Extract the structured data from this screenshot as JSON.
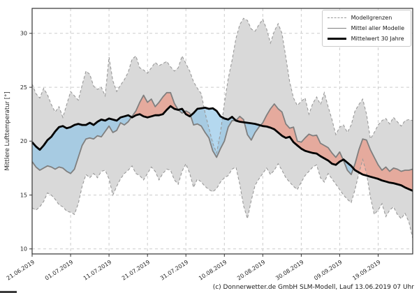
{
  "figure": {
    "y_axis_label": "Mittlere Lufttemperatur [°]",
    "caption": "(c) Donnerwetter.de GmbH SLM-Modell, Lauf 13.06.2019 07 Uhr"
  },
  "legend": {
    "items": [
      {
        "label": "Modellgrenzen",
        "style": "dashed-gray"
      },
      {
        "label": "Mittel aller Modelle",
        "style": "solid-gray"
      },
      {
        "label": "Mittelwert 30 Jahre",
        "style": "thick-black"
      }
    ]
  },
  "chart_data": {
    "type": "line",
    "title": "",
    "ylabel": "Mittlere Lufttemperatur [°]",
    "x_is_daily_dates": true,
    "start_date": "21.06.2019",
    "n_points": 100,
    "x_tick_days": [
      0,
      10,
      20,
      30,
      40,
      50,
      60,
      70,
      80,
      90
    ],
    "x_tick_labels": [
      "21.06.2019",
      "01.07.2019",
      "11.07.2019",
      "21.07.2019",
      "31.07.2019",
      "10.08.2019",
      "20.08.2019",
      "30.08.2019",
      "09.09.2019",
      "19.09.2019"
    ],
    "y_ticks": [
      10,
      15,
      20,
      25,
      30
    ],
    "ylim": [
      9.5,
      32.3
    ],
    "grid": "dashed both axes",
    "legend_position": "upper right",
    "series": [
      {
        "name": "Modellgrenzen (obere Grenze)",
        "role": "band_upper",
        "values": [
          25.3,
          24.4,
          24.0,
          24.9,
          24.3,
          23.4,
          22.7,
          23.2,
          22.2,
          23.4,
          24.6,
          24.2,
          23.8,
          25.2,
          26.5,
          26.2,
          25.1,
          24.8,
          25.0,
          24.2,
          27.8,
          25.6,
          24.6,
          25.2,
          25.7,
          26.4,
          27.6,
          27.9,
          26.8,
          26.6,
          26.3,
          26.8,
          27.3,
          27.0,
          27.2,
          27.4,
          26.9,
          26.5,
          26.8,
          27.9,
          27.2,
          26.5,
          25.5,
          24.9,
          24.4,
          22.6,
          21.2,
          19.8,
          18.9,
          20.8,
          23.5,
          25.8,
          27.5,
          29.5,
          30.8,
          31.4,
          31.2,
          30.4,
          30.2,
          30.8,
          31.3,
          30.4,
          29.1,
          30.2,
          30.9,
          30.0,
          27.8,
          25.5,
          24.0,
          23.3,
          23.7,
          24.0,
          22.5,
          23.5,
          24.1,
          23.4,
          24.5,
          23.2,
          22.0,
          20.6,
          21.3,
          21.5,
          20.8,
          21.5,
          22.8,
          23.4,
          23.9,
          22.5,
          20.2,
          20.8,
          21.5,
          21.9,
          22.1,
          21.6,
          22.2,
          21.8,
          21.4,
          21.9,
          22.0,
          21.9
        ]
      },
      {
        "name": "Modellgrenzen (untere Grenze)",
        "role": "band_lower",
        "values": [
          13.8,
          13.6,
          13.9,
          14.4,
          15.2,
          15.0,
          14.6,
          14.1,
          13.9,
          13.5,
          13.4,
          13.2,
          14.2,
          15.8,
          16.9,
          16.6,
          17.0,
          16.6,
          17.2,
          17.3,
          16.5,
          15.0,
          15.8,
          16.5,
          17.0,
          17.3,
          17.7,
          17.0,
          16.8,
          16.4,
          17.0,
          17.6,
          17.2,
          16.4,
          17.0,
          17.4,
          17.3,
          16.4,
          16.0,
          17.2,
          17.9,
          17.0,
          15.7,
          16.5,
          16.2,
          15.8,
          15.5,
          15.3,
          15.6,
          16.2,
          16.6,
          16.8,
          17.4,
          17.6,
          16.0,
          14.0,
          12.8,
          14.5,
          15.9,
          16.5,
          17.0,
          17.5,
          16.9,
          17.3,
          17.9,
          17.3,
          16.6,
          16.2,
          15.8,
          15.5,
          16.2,
          16.8,
          17.2,
          17.6,
          17.8,
          16.6,
          16.2,
          17.0,
          16.5,
          16.0,
          15.5,
          15.0,
          14.6,
          14.3,
          15.5,
          17.0,
          18.3,
          17.0,
          14.8,
          13.2,
          13.6,
          14.2,
          13.0,
          13.6,
          13.9,
          13.2,
          12.8,
          13.3,
          12.5,
          11.0
        ]
      },
      {
        "name": "Mittel aller Modelle",
        "role": "mean",
        "values": [
          18.1,
          17.6,
          17.3,
          17.5,
          17.7,
          17.6,
          17.4,
          17.6,
          17.5,
          17.2,
          17.0,
          17.4,
          18.5,
          19.6,
          20.2,
          20.3,
          20.2,
          20.5,
          20.4,
          20.9,
          21.4,
          20.8,
          21.0,
          21.7,
          21.5,
          21.8,
          22.3,
          22.8,
          23.6,
          24.25,
          23.6,
          23.9,
          23.2,
          23.6,
          24.1,
          24.5,
          24.5,
          23.5,
          22.9,
          22.6,
          22.8,
          22.6,
          21.5,
          21.6,
          21.4,
          20.8,
          20.3,
          19.1,
          18.5,
          19.3,
          20.0,
          21.3,
          21.9,
          21.9,
          22.3,
          22.0,
          20.6,
          20.1,
          20.8,
          21.3,
          21.7,
          22.4,
          23.0,
          23.45,
          23.0,
          22.7,
          21.6,
          21.2,
          21.3,
          20.0,
          19.9,
          20.3,
          20.65,
          20.5,
          20.55,
          19.8,
          19.6,
          19.4,
          18.9,
          18.5,
          19.0,
          18.2,
          17.3,
          16.9,
          17.9,
          19.2,
          20.2,
          20.1,
          19.2,
          18.5,
          17.8,
          17.3,
          17.6,
          17.2,
          17.5,
          17.4,
          17.2,
          17.3,
          17.3,
          17.4
        ]
      },
      {
        "name": "Mittelwert 30 Jahre",
        "role": "climate",
        "values": [
          19.9,
          19.5,
          19.2,
          19.6,
          20.1,
          20.4,
          20.9,
          21.3,
          21.4,
          21.2,
          21.3,
          21.5,
          21.6,
          21.5,
          21.5,
          21.7,
          21.5,
          21.8,
          22.0,
          21.9,
          22.1,
          22.0,
          21.9,
          22.2,
          22.3,
          22.4,
          22.2,
          22.4,
          22.5,
          22.3,
          22.2,
          22.3,
          22.4,
          22.4,
          22.5,
          22.9,
          23.25,
          23.0,
          22.9,
          23.0,
          22.5,
          22.3,
          22.6,
          23.0,
          23.05,
          23.1,
          23.0,
          23.05,
          22.8,
          22.3,
          22.1,
          22.0,
          22.25,
          21.9,
          21.8,
          21.75,
          21.7,
          21.65,
          21.6,
          21.5,
          21.4,
          21.35,
          21.25,
          21.1,
          20.8,
          20.5,
          20.3,
          20.4,
          19.9,
          19.6,
          19.3,
          19.1,
          19.0,
          18.9,
          18.85,
          18.6,
          18.4,
          18.2,
          17.9,
          17.8,
          18.1,
          18.3,
          18.0,
          17.7,
          17.3,
          17.1,
          16.9,
          16.8,
          16.7,
          16.6,
          16.5,
          16.35,
          16.25,
          16.15,
          16.1,
          16.0,
          15.9,
          15.7,
          15.55,
          15.4
        ]
      }
    ],
    "colors": {
      "band_fill": "#d9d9d9",
      "band_edge": "#999999",
      "mean_line": "#7f7f7f",
      "climate_line": "#000000",
      "warm_fill": "rgba(235,145,125,0.65)",
      "cold_fill": "rgba(140,195,230,0.65)",
      "grid": "#cccccc",
      "spine": "#333333"
    }
  }
}
